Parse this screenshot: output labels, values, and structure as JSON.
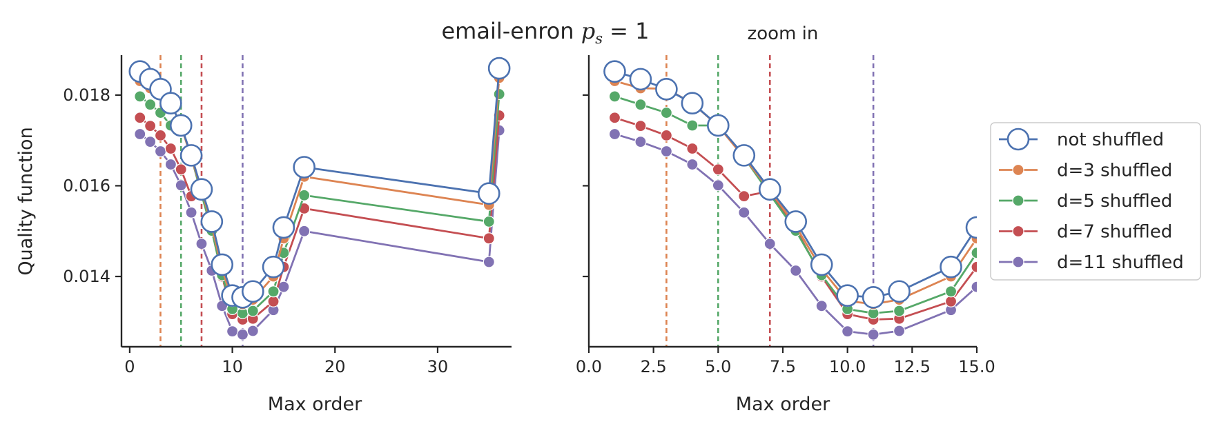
{
  "figure": {
    "suptitle_text": "email-enron ",
    "suptitle_math_p": "p",
    "suptitle_math_sub": "s",
    "suptitle_math_rest": " = 1"
  },
  "colors": {
    "not_shuffled": "#4c72b0",
    "d3": "#dd8452",
    "d5": "#55a868",
    "d7": "#c44e52",
    "d11": "#8172b3",
    "axis": "#262626"
  },
  "chart_data": [
    {
      "type": "line",
      "title": "",
      "xlabel": "Max order",
      "ylabel": "Quality function",
      "xlim": [
        -0.8,
        37.2
      ],
      "ylim": [
        0.01245,
        0.01888
      ],
      "xticks": [
        0,
        10,
        20,
        30
      ],
      "xtick_labels": [
        "0",
        "10",
        "20",
        "30"
      ],
      "yticks": [
        0.014,
        0.016,
        0.018
      ],
      "ytick_labels": [
        "0.014",
        "0.016",
        "0.018"
      ],
      "grid": false,
      "vlines": [
        {
          "x": 3,
          "series": "d=3 shuffled"
        },
        {
          "x": 5,
          "series": "d=5 shuffled"
        },
        {
          "x": 7,
          "series": "d=7 shuffled"
        },
        {
          "x": 11,
          "series": "d=11 shuffled"
        }
      ],
      "x": [
        1,
        2,
        3,
        4,
        5,
        6,
        7,
        8,
        9,
        10,
        11,
        12,
        14,
        15,
        17,
        35,
        36
      ],
      "series": [
        {
          "name": "not shuffled",
          "marker": "open-circle",
          "values": [
            0.01852,
            0.01835,
            0.01813,
            0.01782,
            0.01733,
            0.01667,
            0.01592,
            0.01521,
            0.01426,
            0.01358,
            0.01354,
            0.01367,
            0.01421,
            0.01508,
            0.01641,
            0.01583,
            0.01859
          ]
        },
        {
          "name": "d=3 shuffled",
          "marker": "filled-circle",
          "values": [
            0.01831,
            0.01815,
            0.01814,
            0.01782,
            0.01732,
            0.01662,
            0.0159,
            0.01511,
            0.01416,
            0.01346,
            0.01339,
            0.01349,
            0.014,
            0.01484,
            0.0162,
            0.01558,
            0.01838
          ]
        },
        {
          "name": "d=5 shuffled",
          "marker": "filled-circle",
          "values": [
            0.01797,
            0.01779,
            0.01761,
            0.01733,
            0.01733,
            0.01663,
            0.01581,
            0.01501,
            0.01403,
            0.01328,
            0.01319,
            0.01324,
            0.01367,
            0.01452,
            0.01579,
            0.01521,
            0.01802
          ]
        },
        {
          "name": "d=7 shuffled",
          "marker": "filled-circle",
          "values": [
            0.0175,
            0.01732,
            0.01711,
            0.01682,
            0.01636,
            0.01577,
            0.01588,
            0.01505,
            0.014,
            0.01317,
            0.01305,
            0.01307,
            0.01345,
            0.01421,
            0.0155,
            0.01484,
            0.01755
          ]
        },
        {
          "name": "d=11 shuffled",
          "marker": "filled-circle",
          "values": [
            0.01714,
            0.01697,
            0.01676,
            0.01647,
            0.01601,
            0.01541,
            0.01472,
            0.01413,
            0.01335,
            0.01279,
            0.01272,
            0.0128,
            0.01326,
            0.01377,
            0.015,
            0.01432,
            0.01722
          ]
        }
      ]
    },
    {
      "type": "line",
      "title": "zoom in",
      "xlabel": "Max order",
      "ylabel": "",
      "xlim": [
        0,
        15
      ],
      "ylim": [
        0.01245,
        0.01888
      ],
      "xticks": [
        0,
        2.5,
        5,
        7.5,
        10,
        12.5,
        15
      ],
      "xtick_labels": [
        "0.0",
        "2.5",
        "5.0",
        "7.5",
        "10.0",
        "12.5",
        "15.0"
      ],
      "yticks": [
        0.014,
        0.016,
        0.018
      ],
      "ytick_labels": [
        "",
        "",
        ""
      ],
      "grid": false,
      "vlines": [
        {
          "x": 3,
          "series": "d=3 shuffled"
        },
        {
          "x": 5,
          "series": "d=5 shuffled"
        },
        {
          "x": 7,
          "series": "d=7 shuffled"
        },
        {
          "x": 11,
          "series": "d=11 shuffled"
        }
      ],
      "legend": {
        "placement": "outside-right",
        "entries": [
          "not shuffled",
          "d=3 shuffled",
          "d=5 shuffled",
          "d=7 shuffled",
          "d=11 shuffled"
        ]
      },
      "x": [
        1,
        2,
        3,
        4,
        5,
        6,
        7,
        8,
        9,
        10,
        11,
        12,
        14,
        15
      ],
      "series": [
        {
          "name": "not shuffled",
          "marker": "open-circle",
          "values": [
            0.01852,
            0.01835,
            0.01813,
            0.01782,
            0.01733,
            0.01667,
            0.01592,
            0.01521,
            0.01426,
            0.01358,
            0.01354,
            0.01367,
            0.01421,
            0.01508
          ]
        },
        {
          "name": "d=3 shuffled",
          "marker": "filled-circle",
          "values": [
            0.01831,
            0.01815,
            0.01814,
            0.01782,
            0.01732,
            0.01662,
            0.0159,
            0.01511,
            0.01416,
            0.01346,
            0.01339,
            0.01349,
            0.014,
            0.01484
          ]
        },
        {
          "name": "d=5 shuffled",
          "marker": "filled-circle",
          "values": [
            0.01797,
            0.01779,
            0.01761,
            0.01733,
            0.01733,
            0.01663,
            0.01581,
            0.01501,
            0.01403,
            0.01328,
            0.01319,
            0.01324,
            0.01367,
            0.01452
          ]
        },
        {
          "name": "d=7 shuffled",
          "marker": "filled-circle",
          "values": [
            0.0175,
            0.01732,
            0.01711,
            0.01682,
            0.01636,
            0.01577,
            0.01588,
            0.01505,
            0.014,
            0.01317,
            0.01305,
            0.01307,
            0.01345,
            0.01421
          ]
        },
        {
          "name": "d=11 shuffled",
          "marker": "filled-circle",
          "values": [
            0.01714,
            0.01697,
            0.01676,
            0.01647,
            0.01601,
            0.01541,
            0.01472,
            0.01413,
            0.01335,
            0.01279,
            0.01272,
            0.0128,
            0.01326,
            0.01377
          ]
        }
      ]
    }
  ]
}
